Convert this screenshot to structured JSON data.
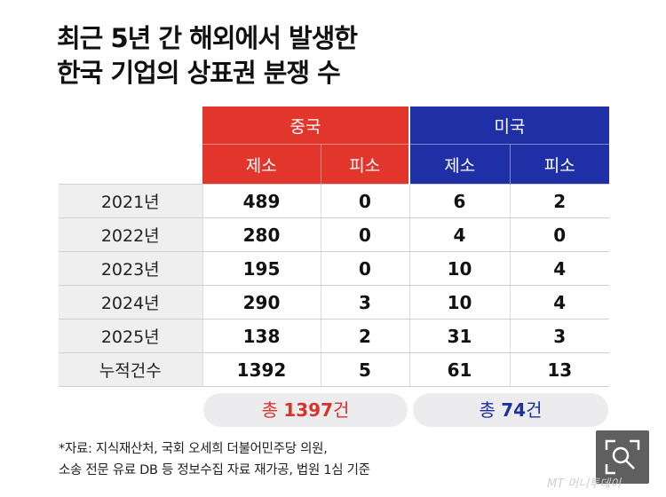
{
  "title": {
    "line1": "최근 5년 간 해외에서 발생한",
    "line2": "한국 기업의 상표권 분쟁 수"
  },
  "chart_data": {
    "type": "table",
    "groups": [
      {
        "name": "중국",
        "color": "#e2352c",
        "columns": [
          "제소",
          "피소"
        ]
      },
      {
        "name": "미국",
        "color": "#1f2fa6",
        "columns": [
          "제소",
          "피소"
        ]
      }
    ],
    "rows": [
      {
        "label": "2021년",
        "values": [
          "489",
          "0",
          "6",
          "2"
        ]
      },
      {
        "label": "2022년",
        "values": [
          "280",
          "0",
          "4",
          "0"
        ]
      },
      {
        "label": "2023년",
        "values": [
          "195",
          "0",
          "10",
          "4"
        ]
      },
      {
        "label": "2024년",
        "values": [
          "290",
          "3",
          "10",
          "4"
        ]
      },
      {
        "label": "2025년",
        "values": [
          "138",
          "2",
          "31",
          "3"
        ]
      },
      {
        "label": "누적건수",
        "values": [
          "1392",
          "5",
          "61",
          "13"
        ]
      }
    ],
    "totals": [
      {
        "prefix": "총 ",
        "value": "1397",
        "suffix": "건",
        "color": "#d8332b"
      },
      {
        "prefix": "총 ",
        "value": "74",
        "suffix": "건",
        "color": "#1f2f9c"
      }
    ]
  },
  "source": {
    "line1": "*자료: 지식재산처, 국회 오세희 더불어민주당 의원,",
    "line2": "소송 전문 유료 DB 등 정보수집 자료 재가공, 법원 1심 기준"
  },
  "watermark": "MT 머니투데이",
  "icons": {
    "zoom": "zoom-search-icon"
  }
}
